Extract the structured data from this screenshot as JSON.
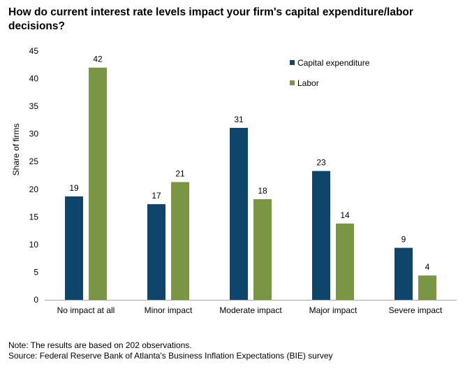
{
  "chart_data": {
    "type": "bar",
    "title": "How do current interest rate levels impact your firm's capital expenditure/labor decisions?",
    "xlabel": "",
    "ylabel": "Share of firms",
    "ylim": [
      0,
      45
    ],
    "yticks": [
      0,
      5,
      10,
      15,
      20,
      25,
      30,
      35,
      40,
      45
    ],
    "categories": [
      "No impact at all",
      "Minor impact",
      "Moderate impact",
      "Major impact",
      "Severe impact"
    ],
    "series": [
      {
        "name": "Capital expenditure",
        "color": "#10456b",
        "values": [
          18.7,
          17.3,
          31.1,
          23.3,
          9.4
        ],
        "labels": [
          "19",
          "17",
          "31",
          "23",
          "9"
        ]
      },
      {
        "name": "Labor",
        "color": "#7a9644",
        "values": [
          42.0,
          21.3,
          18.2,
          13.8,
          4.4
        ],
        "labels": [
          "42",
          "21",
          "18",
          "14",
          "4"
        ]
      }
    ],
    "grid": false,
    "legend": "top-right"
  },
  "notes": {
    "note": "Note: The results are based on 202 observations.",
    "source": "Source: Federal Reserve Bank of Atlanta's Business Inflation Expectations (BIE) survey"
  }
}
